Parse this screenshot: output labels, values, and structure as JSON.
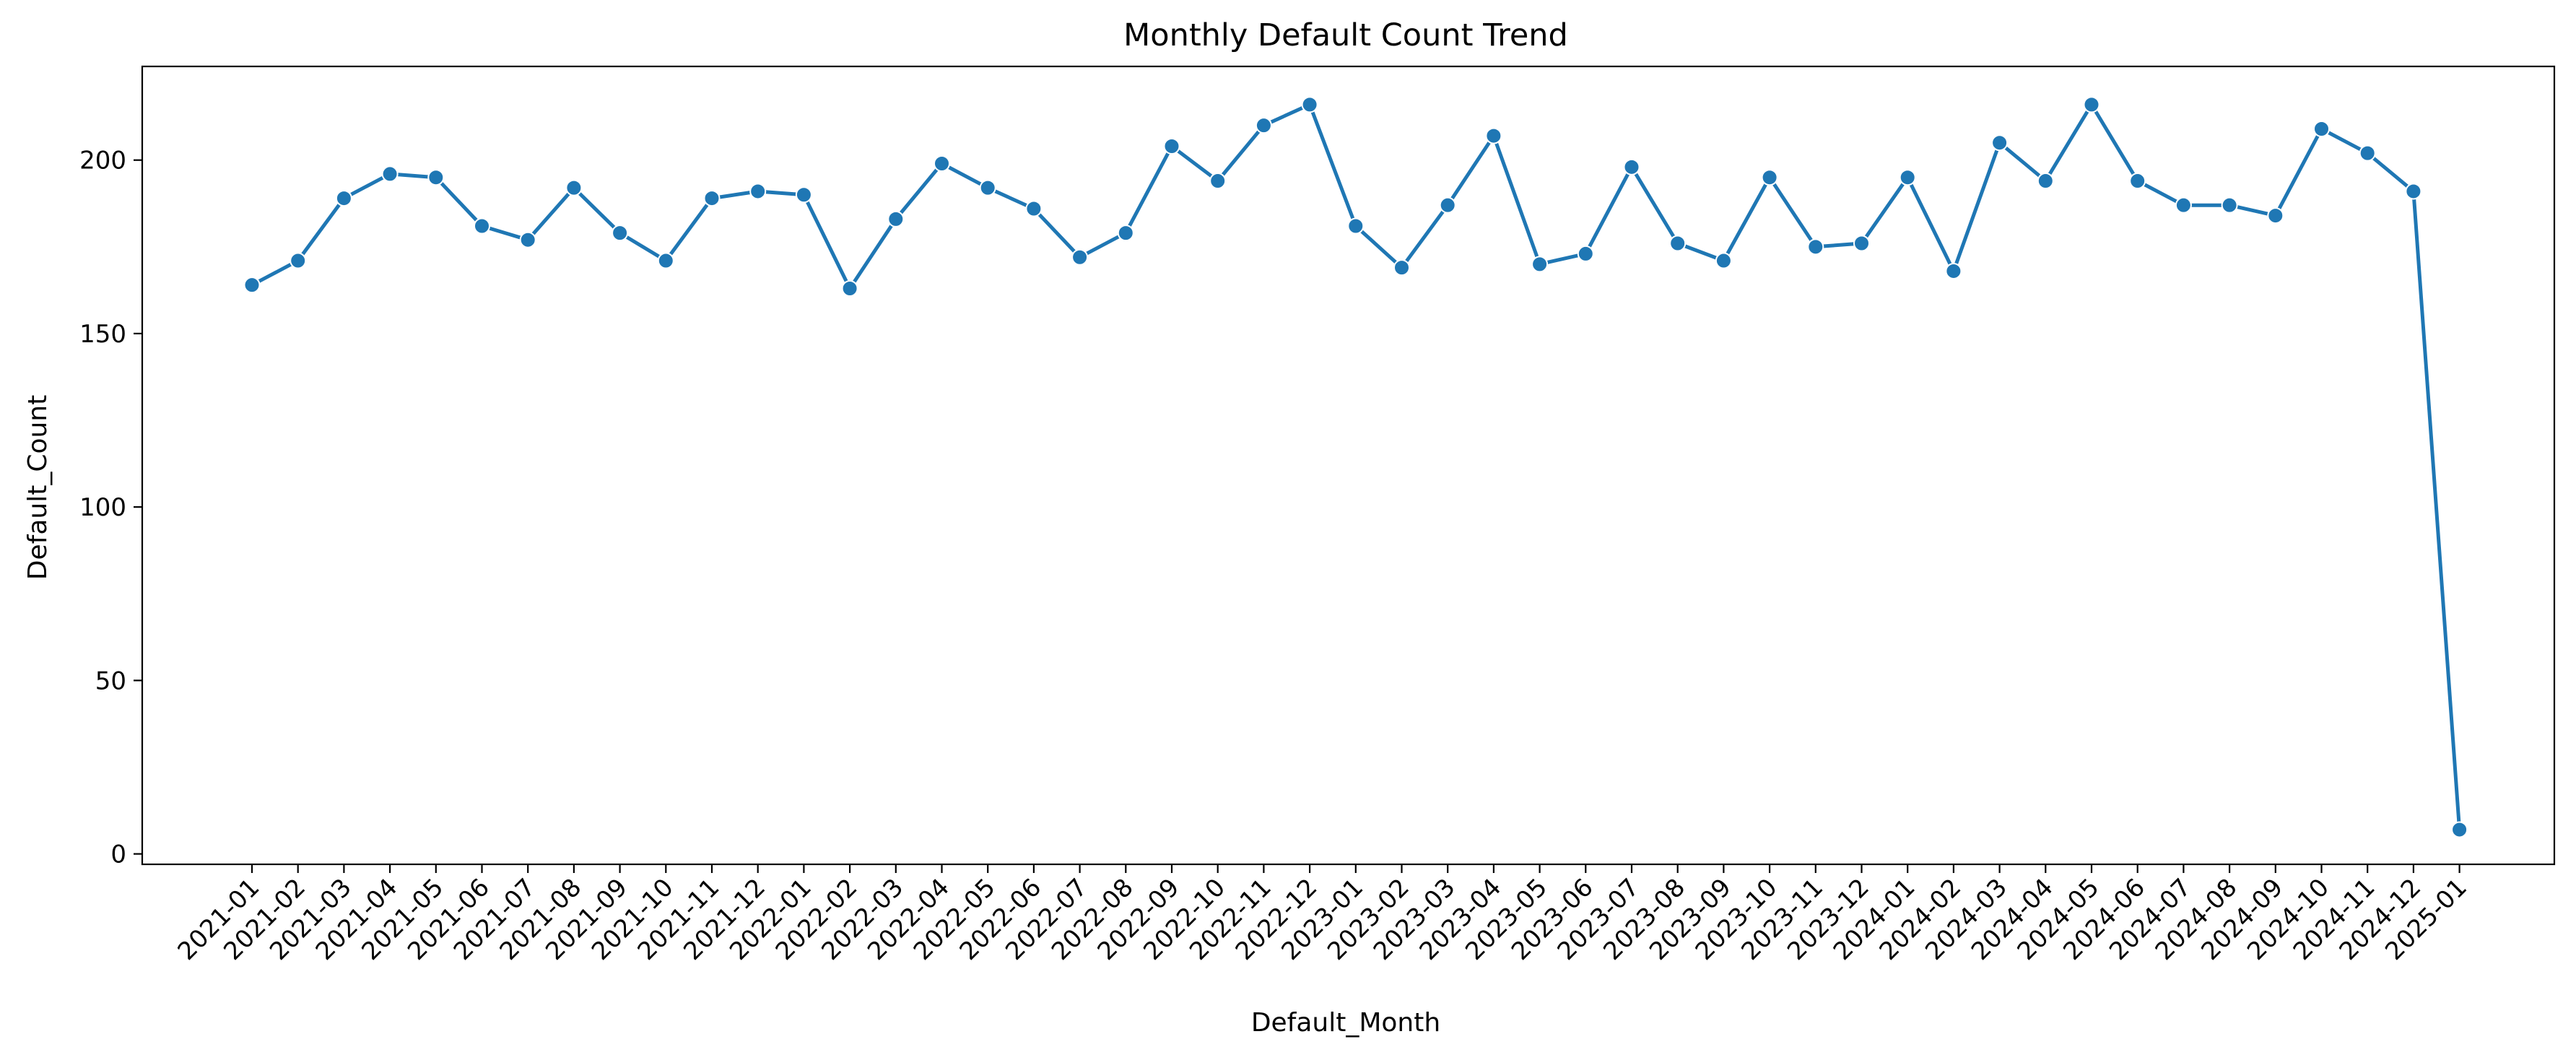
{
  "chart_data": {
    "type": "line",
    "title": "Monthly Default Count Trend",
    "xlabel": "Default_Month",
    "ylabel": "Default_Count",
    "ylim": [
      -3,
      227
    ],
    "yticks": [
      0,
      50,
      100,
      150,
      200
    ],
    "grid": false,
    "legend": "none",
    "line_color": "#1f77b4",
    "marker": "circle",
    "categories": [
      "2021-01",
      "2021-02",
      "2021-03",
      "2021-04",
      "2021-05",
      "2021-06",
      "2021-07",
      "2021-08",
      "2021-09",
      "2021-10",
      "2021-11",
      "2021-12",
      "2022-01",
      "2022-02",
      "2022-03",
      "2022-04",
      "2022-05",
      "2022-06",
      "2022-07",
      "2022-08",
      "2022-09",
      "2022-10",
      "2022-11",
      "2022-12",
      "2023-01",
      "2023-02",
      "2023-03",
      "2023-04",
      "2023-05",
      "2023-06",
      "2023-07",
      "2023-08",
      "2023-09",
      "2023-10",
      "2023-11",
      "2023-12",
      "2024-01",
      "2024-02",
      "2024-03",
      "2024-04",
      "2024-05",
      "2024-06",
      "2024-07",
      "2024-08",
      "2024-09",
      "2024-10",
      "2024-11",
      "2024-12",
      "2025-01"
    ],
    "values": [
      164,
      171,
      189,
      196,
      195,
      181,
      177,
      192,
      179,
      171,
      189,
      191,
      190,
      163,
      183,
      199,
      192,
      186,
      172,
      179,
      204,
      194,
      210,
      216,
      181,
      169,
      187,
      207,
      170,
      173,
      198,
      176,
      171,
      195,
      175,
      176,
      195,
      168,
      205,
      194,
      216,
      194,
      187,
      187,
      184,
      209,
      202,
      191,
      7
    ]
  }
}
